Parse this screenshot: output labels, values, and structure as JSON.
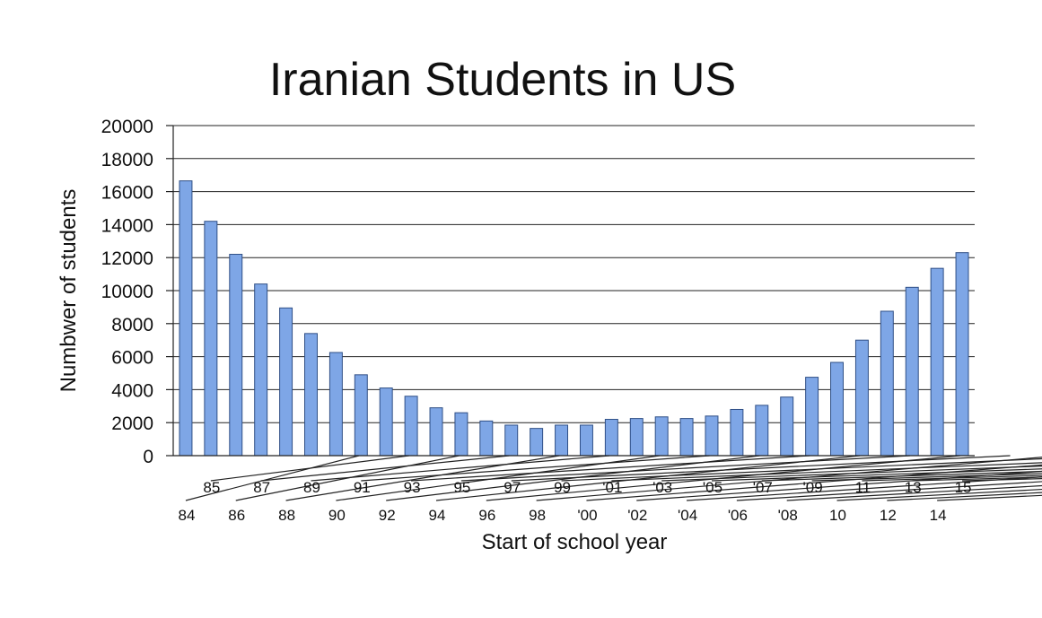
{
  "chart_data": {
    "type": "bar",
    "title": "Iranian Students in US",
    "xlabel": "Start of school year",
    "ylabel": "Numbwer of students",
    "ylim": [
      0,
      20000
    ],
    "yticks": [
      0,
      2000,
      4000,
      6000,
      8000,
      10000,
      12000,
      14000,
      16000,
      18000,
      20000
    ],
    "ytick_labels": [
      "0",
      "2000",
      "4000",
      "6000",
      "8000",
      "10000",
      "12000",
      "14000",
      "16000",
      "18000",
      "20000"
    ],
    "grid": true,
    "categories": [
      "84",
      "85",
      "86",
      "87",
      "88",
      "89",
      "90",
      "91",
      "92",
      "93",
      "94",
      "95",
      "96",
      "97",
      "98",
      "99",
      "'00",
      "'01",
      "'02",
      "'03",
      "'04",
      "'05",
      "'06",
      "'07",
      "'08",
      "'09",
      "10",
      "11",
      "12",
      "13",
      "14",
      "15"
    ],
    "values": [
      16650,
      14200,
      12200,
      10400,
      8950,
      7400,
      6250,
      4900,
      4100,
      3600,
      2900,
      2600,
      2100,
      1850,
      1650,
      1850,
      1850,
      2200,
      2250,
      2350,
      2250,
      2400,
      2800,
      3050,
      3550,
      4750,
      5650,
      7000,
      8750,
      10200,
      11350,
      12300
    ],
    "colors": {
      "bar_fill": "#7ea6e6",
      "bar_edge": "#2f4f86"
    }
  }
}
